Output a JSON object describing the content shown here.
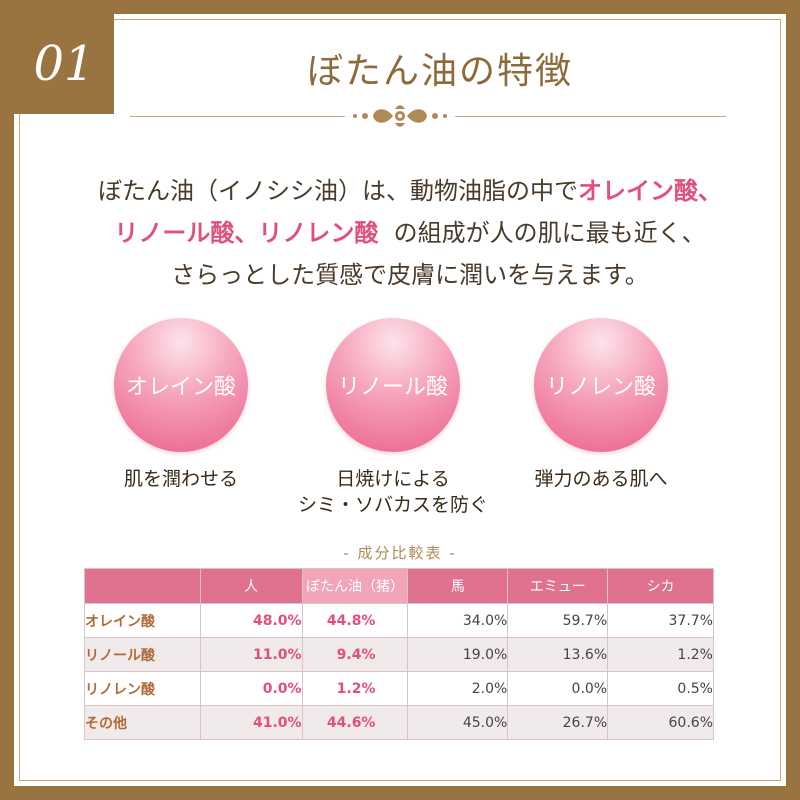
{
  "badge": "01",
  "title": "ぼたん油の特徴",
  "intro": {
    "line1_pre": "ぼたん油（イノシシ油）は、動物油脂の中で",
    "line1_hl": "オレイン酸、",
    "line2_hl": "リノール酸、リノレン酸",
    "line2_post": "の組成が人の肌に最も近く、",
    "line3": "さらっとした質感で皮膚に潤いを与えます。"
  },
  "features": [
    {
      "name": "オレイン酸",
      "caption1": "肌を潤わせる",
      "caption2": ""
    },
    {
      "name": "リノール酸",
      "caption1": "日焼けによる",
      "caption2": "シミ・ソバカスを防ぐ"
    },
    {
      "name": "リノレン酸",
      "caption1": "弾力のある肌へ",
      "caption2": ""
    }
  ],
  "table": {
    "title": "- 成分比較表 -",
    "headers": [
      "",
      "人",
      "ぼたん油（猪）",
      "馬",
      "エミュー",
      "シカ"
    ],
    "rows": [
      {
        "label": "オレイン酸",
        "values": [
          "48.0%",
          "44.8%",
          "34.0%",
          "59.7%",
          "37.7%"
        ]
      },
      {
        "label": "リノール酸",
        "values": [
          "11.0%",
          "9.4%",
          "19.0%",
          "13.6%",
          "1.2%"
        ]
      },
      {
        "label": "リノレン酸",
        "values": [
          "0.0%",
          "1.2%",
          "2.0%",
          "0.0%",
          "0.5%"
        ]
      },
      {
        "label": "その他",
        "values": [
          "41.0%",
          "44.6%",
          "45.0%",
          "26.7%",
          "60.6%"
        ]
      }
    ]
  },
  "colors": {
    "brand_gold": "#9a7440",
    "accent_pink": "#e0507a"
  }
}
